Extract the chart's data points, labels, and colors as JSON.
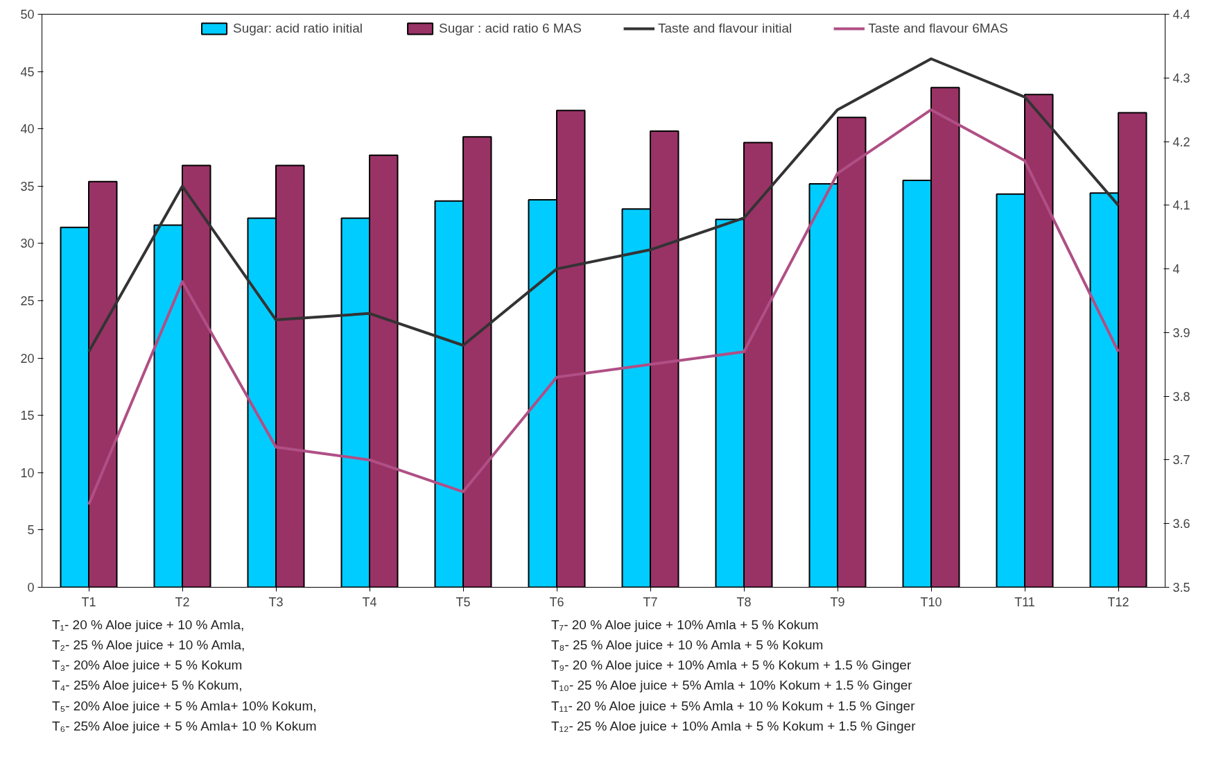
{
  "chart_data": {
    "type": "bar",
    "categories": [
      "T1",
      "T2",
      "T3",
      "T4",
      "T5",
      "T6",
      "T7",
      "T8",
      "T9",
      "T10",
      "T11",
      "T12"
    ],
    "series": [
      {
        "name": "Sugar: acid ratio initial",
        "color": "#00ccff",
        "values": [
          31.4,
          31.6,
          32.2,
          32.2,
          33.7,
          33.8,
          33.0,
          32.1,
          35.2,
          35.5,
          34.3,
          34.4
        ]
      },
      {
        "name": "Sugar : acid ratio 6 MAS",
        "color": "#993366",
        "values": [
          35.4,
          36.8,
          36.8,
          37.7,
          39.3,
          41.6,
          39.8,
          38.8,
          41.0,
          43.6,
          43.0,
          41.4
        ]
      },
      {
        "name": "Taste and flavour initial",
        "type": "line",
        "axis": "y2",
        "color": "#333333",
        "values": [
          3.87,
          4.13,
          3.92,
          3.93,
          3.88,
          4.0,
          4.03,
          4.08,
          4.25,
          4.33,
          4.27,
          4.1
        ]
      },
      {
        "name": "Taste and flavour 6MAS",
        "type": "line",
        "axis": "y2",
        "color": "#b04f85",
        "values": [
          3.63,
          3.98,
          3.72,
          3.7,
          3.65,
          3.83,
          3.85,
          3.87,
          4.15,
          4.25,
          4.17,
          3.87
        ]
      }
    ],
    "ylim": [
      0,
      50
    ],
    "yticks": [
      0,
      5,
      10,
      15,
      20,
      25,
      30,
      35,
      40,
      45,
      50
    ],
    "y2lim": [
      3.5,
      4.4
    ],
    "y2ticks": [
      3.5,
      3.6,
      3.7,
      3.8,
      3.9,
      4,
      4.1,
      4.2,
      4.3,
      4.4
    ],
    "legend": "top",
    "grid": false,
    "marker": "none",
    "line_style": "solid",
    "annotations": [
      "T₁- 20 % Aloe juice + 10 % Amla,",
      "T₂- 25 % Aloe juice + 10 % Amla,",
      "T₃- 20% Aloe juice + 5 % Kokum",
      "T₄- 25% Aloe juice+ 5 % Kokum,",
      "T₅- 20% Aloe juice + 5 % Amla+ 10% Kokum,",
      "T₆- 25% Aloe juice + 5 % Amla+ 10 %  Kokum",
      "T₇- 20 % Aloe juice + 10%  Amla + 5 % Kokum",
      "T₈- 25 % Aloe juice + 10 % Amla + 5 % Kokum",
      "T₉- 20 % Aloe juice + 10% Amla + 5 % Kokum + 1.5 % Ginger",
      "T₁₀- 25 % Aloe juice + 5% Amla + 10% Kokum + 1.5 % Ginger",
      "T₁₁- 20 % Aloe juice + 5% Amla + 10 % Kokum + 1.5 % Ginger",
      "T₁₂- 25 % Aloe juice + 10% Amla + 5 % Kokum + 1.5 % Ginger"
    ]
  }
}
